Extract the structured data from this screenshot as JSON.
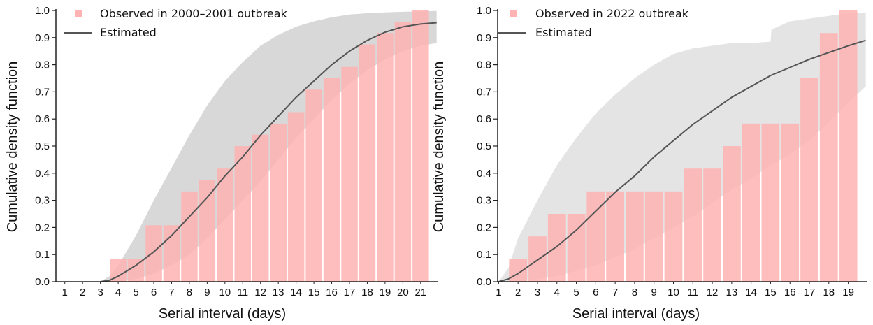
{
  "chart_data": [
    {
      "type": "bar",
      "xlabel": "Serial interval (days)",
      "ylabel": "Cumulative density function",
      "ylim": [
        0,
        1
      ],
      "yticks": [
        "0.0",
        "0.1",
        "0.2",
        "0.3",
        "0.4",
        "0.5",
        "0.6",
        "0.7",
        "0.8",
        "0.9",
        "1.0"
      ],
      "categories": [
        "1",
        "2",
        "3",
        "4",
        "5",
        "6",
        "7",
        "8",
        "9",
        "10",
        "11",
        "12",
        "13",
        "14",
        "15",
        "16",
        "17",
        "18",
        "19",
        "20",
        "21"
      ],
      "legend": {
        "position": "top-left",
        "observed": "Observed in 2000–2001 outbreak",
        "estimated": "Estimated"
      },
      "series": [
        {
          "name": "Observed in 2000–2001 outbreak",
          "x": [
            4,
            5,
            6,
            7,
            8,
            9,
            10,
            11,
            12,
            13,
            14,
            15,
            16,
            17,
            18,
            19,
            20,
            21
          ],
          "values": [
            0.083,
            0.083,
            0.208,
            0.208,
            0.333,
            0.375,
            0.417,
            0.5,
            0.542,
            0.583,
            0.625,
            0.708,
            0.75,
            0.792,
            0.875,
            0.917,
            0.958,
            1.0
          ]
        },
        {
          "name": "Estimated",
          "x": [
            3.0,
            3.5,
            4,
            5,
            6,
            7,
            8,
            9,
            10,
            11,
            12,
            13,
            14,
            15,
            16,
            17,
            18,
            19,
            20,
            21,
            21.9
          ],
          "values": [
            0.0,
            0.005,
            0.02,
            0.06,
            0.11,
            0.17,
            0.24,
            0.31,
            0.39,
            0.46,
            0.54,
            0.61,
            0.68,
            0.74,
            0.8,
            0.85,
            0.89,
            0.92,
            0.94,
            0.95,
            0.955
          ]
        }
      ],
      "band": {
        "x": [
          3.0,
          3.5,
          4,
          5,
          6,
          7,
          8,
          9,
          10,
          11,
          12,
          13,
          14,
          15,
          16,
          17,
          18,
          19,
          20,
          21,
          21.9
        ],
        "lower": [
          0.0,
          0.0,
          0.0,
          0.01,
          0.03,
          0.06,
          0.1,
          0.16,
          0.23,
          0.3,
          0.37,
          0.45,
          0.53,
          0.6,
          0.67,
          0.73,
          0.78,
          0.82,
          0.85,
          0.87,
          0.88
        ],
        "upper": [
          0.0,
          0.02,
          0.06,
          0.17,
          0.3,
          0.42,
          0.54,
          0.65,
          0.74,
          0.81,
          0.87,
          0.91,
          0.94,
          0.96,
          0.975,
          0.985,
          0.99,
          0.993,
          0.995,
          0.997,
          0.998
        ]
      },
      "colors": {
        "bar": "#ffb3b3",
        "line": "#555555",
        "band": "#d6d6d6"
      }
    },
    {
      "type": "bar",
      "xlabel": "Serial interval (days)",
      "ylabel": "Cumulative density function",
      "ylim": [
        0,
        1
      ],
      "yticks": [
        "0.0",
        "0.1",
        "0.2",
        "0.3",
        "0.4",
        "0.5",
        "0.6",
        "0.7",
        "0.8",
        "0.9",
        "1.0"
      ],
      "categories": [
        "1",
        "2",
        "3",
        "4",
        "5",
        "6",
        "7",
        "8",
        "9",
        "10",
        "11",
        "12",
        "13",
        "14",
        "15",
        "16",
        "17",
        "18",
        "19"
      ],
      "legend": {
        "position": "top-left",
        "observed": "Observed in 2022 outbreak",
        "estimated": "Estimated"
      },
      "series": [
        {
          "name": "Observed in 2022 outbreak",
          "x": [
            2,
            3,
            4,
            5,
            6,
            7,
            8,
            9,
            10,
            11,
            12,
            13,
            14,
            15,
            16,
            17,
            18,
            19
          ],
          "values": [
            0.083,
            0.167,
            0.25,
            0.25,
            0.333,
            0.333,
            0.333,
            0.333,
            0.333,
            0.417,
            0.417,
            0.5,
            0.583,
            0.583,
            0.583,
            0.75,
            0.917,
            1.0
          ]
        },
        {
          "name": "Estimated",
          "x": [
            1.0,
            1.5,
            2,
            3,
            4,
            5,
            6,
            7,
            8,
            9,
            10,
            11,
            12,
            13,
            14,
            15,
            16,
            17,
            18,
            19,
            19.9
          ],
          "values": [
            0.0,
            0.01,
            0.03,
            0.08,
            0.13,
            0.19,
            0.26,
            0.33,
            0.39,
            0.46,
            0.52,
            0.58,
            0.63,
            0.68,
            0.72,
            0.76,
            0.79,
            0.82,
            0.845,
            0.87,
            0.89
          ]
        }
      ],
      "band": {
        "x": [
          1.0,
          1.5,
          2,
          3,
          4,
          5,
          6,
          7,
          8,
          9,
          10,
          11,
          12,
          13,
          14,
          15,
          15.05,
          16,
          17,
          18,
          19,
          19.9
        ],
        "lower": [
          0.0,
          0.0,
          0.0,
          0.01,
          0.02,
          0.04,
          0.06,
          0.09,
          0.12,
          0.16,
          0.2,
          0.24,
          0.29,
          0.34,
          0.38,
          0.43,
          0.43,
          0.47,
          0.52,
          0.59,
          0.66,
          0.72
        ],
        "upper": [
          0.0,
          0.05,
          0.16,
          0.3,
          0.43,
          0.53,
          0.62,
          0.69,
          0.75,
          0.8,
          0.84,
          0.86,
          0.87,
          0.88,
          0.88,
          0.885,
          0.93,
          0.96,
          0.97,
          0.98,
          0.99,
          0.99
        ]
      },
      "colors": {
        "bar": "#ffb3b3",
        "line": "#555555",
        "band": "#e3e3e3"
      }
    }
  ]
}
